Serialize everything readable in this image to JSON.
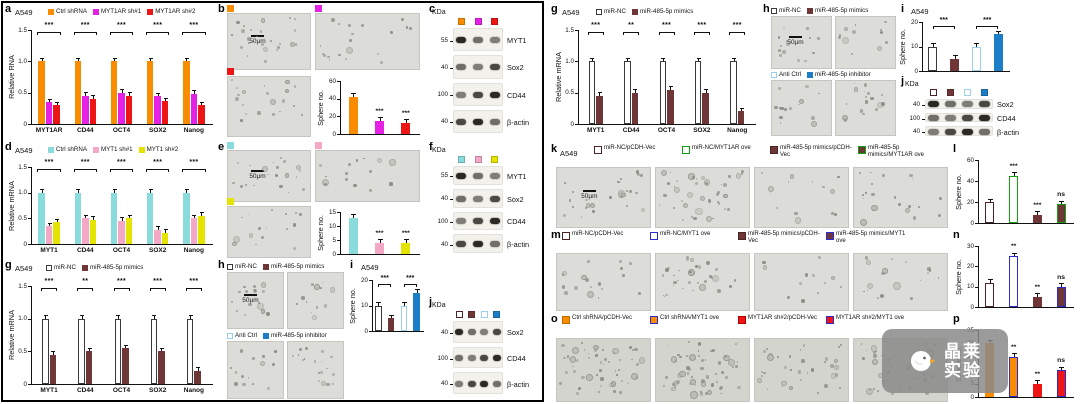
{
  "cell_line": "A549",
  "scale_bar": "50µm",
  "labels": {
    "a": "a",
    "b": "b",
    "c": "c",
    "d": "d",
    "e": "e",
    "f": "f",
    "g_left": "g",
    "h_left": "h",
    "i_left": "i",
    "j_left": "j",
    "g_right": "g",
    "h_right": "h",
    "i_right": "i",
    "j_right": "j",
    "k": "k",
    "l": "l",
    "m": "m",
    "n": "n",
    "o": "o",
    "p": "p"
  },
  "chart_data": {
    "a": {
      "type": "bar",
      "ylabel": "Relative RNA",
      "ymax": 1.5,
      "yticks": [
        {
          "v": 0,
          "t": "0"
        },
        {
          "v": 0.5,
          "t": "0.5"
        },
        {
          "v": 1,
          "t": "1.0"
        },
        {
          "v": 1.5,
          "t": "1.5"
        }
      ],
      "categories": [
        "MYT1AR",
        "CD44",
        "OCT4",
        "SOX2",
        "Nanog"
      ],
      "series": [
        {
          "name": "Ctrl shRNA",
          "color": "#F98C00",
          "values": [
            1.0,
            1.0,
            1.0,
            1.0,
            1.0
          ]
        },
        {
          "name": "MYT1AR sh#1",
          "color": "#E621E6",
          "values": [
            0.35,
            0.45,
            0.5,
            0.44,
            0.48
          ]
        },
        {
          "name": "MYT1AR sh#2",
          "color": "#ED1515",
          "values": [
            0.3,
            0.4,
            0.45,
            0.36,
            0.3
          ]
        }
      ],
      "sig": [
        "***",
        "***",
        "***",
        "***",
        "***"
      ]
    },
    "d": {
      "type": "bar",
      "ylabel": "Relative mRNA",
      "ymax": 1.5,
      "yticks": [
        {
          "v": 0,
          "t": "0"
        },
        {
          "v": 0.5,
          "t": "0.5"
        },
        {
          "v": 1,
          "t": "1.0"
        },
        {
          "v": 1.5,
          "t": "1.5"
        }
      ],
      "categories": [
        "MYT1",
        "CD44",
        "OCT4",
        "SOX2",
        "Nanog"
      ],
      "series": [
        {
          "name": "Ctrl shRNA",
          "color": "#8ADBDB",
          "values": [
            1.0,
            1.0,
            1.0,
            1.0,
            1.0
          ]
        },
        {
          "name": "MYT1 sh#1",
          "color": "#F5A8C6",
          "values": [
            0.35,
            0.5,
            0.45,
            0.28,
            0.5
          ]
        },
        {
          "name": "MYT1 sh#2",
          "color": "#E4E400",
          "values": [
            0.42,
            0.47,
            0.5,
            0.22,
            0.55
          ]
        }
      ],
      "sig": [
        "***",
        "***",
        "***",
        "***",
        "***"
      ]
    },
    "g": {
      "type": "bar",
      "ylabel": "Relative mRNA",
      "ymax": 1.5,
      "yticks": [
        {
          "v": 0,
          "t": "0"
        },
        {
          "v": 0.5,
          "t": "0.5"
        },
        {
          "v": 1,
          "t": "1.0"
        },
        {
          "v": 1.5,
          "t": "1.5"
        }
      ],
      "categories": [
        "MYT1",
        "CD44",
        "OCT4",
        "SOX2",
        "Nanog"
      ],
      "series": [
        {
          "name": "miR-NC",
          "fill": "#FFFFFF",
          "border": "#3A3A3A",
          "values": [
            1.0,
            1.0,
            1.0,
            1.0,
            1.0
          ]
        },
        {
          "name": "miR-485-5p mimics",
          "fill": "#6E3636",
          "border": "#6E3636",
          "values": [
            0.45,
            0.5,
            0.55,
            0.5,
            0.2
          ]
        }
      ],
      "sig": [
        "***",
        "**",
        "***",
        "***",
        "***"
      ]
    },
    "b_sphere": {
      "type": "bar",
      "ylabel": "Sphere no.",
      "ymax": 60,
      "ml": 24,
      "mt": 9,
      "mb": 4,
      "yticks": [
        {
          "v": 0,
          "t": "0"
        },
        {
          "v": 20,
          "t": "20"
        },
        {
          "v": 40,
          "t": "40"
        },
        {
          "v": 60,
          "t": "60"
        }
      ],
      "bars": [
        {
          "fill": "#F98C00",
          "value": 42
        },
        {
          "fill": "#E621E6",
          "value": 15,
          "sig": "***"
        },
        {
          "fill": "#ED1515",
          "value": 13,
          "sig": "***"
        }
      ]
    },
    "e_sphere": {
      "type": "bar",
      "ylabel": "Sphere no.",
      "ymax": 15,
      "ml": 24,
      "mt": 8,
      "mb": 4,
      "yticks": [
        {
          "v": 0,
          "t": "0"
        },
        {
          "v": 5,
          "t": "5"
        },
        {
          "v": 10,
          "t": "10"
        },
        {
          "v": 15,
          "t": "15"
        }
      ],
      "bars": [
        {
          "fill": "#8ADBDB",
          "value": 13
        },
        {
          "fill": "#F5A8C6",
          "value": 4,
          "sig": "***"
        },
        {
          "fill": "#E4E400",
          "value": 4,
          "sig": "***"
        }
      ]
    },
    "i_sphere": {
      "type": "bar",
      "ylabel": "Sphere no.",
      "ymax": 20,
      "ml": 20,
      "mt": 10,
      "mb": 3,
      "yticks": [
        {
          "v": 0,
          "t": "0"
        },
        {
          "v": 10,
          "t": "10"
        },
        {
          "v": 20,
          "t": "20"
        }
      ],
      "bars": [
        {
          "fill": "#FFFFFF",
          "border": "#3A3A3A",
          "value": 10
        },
        {
          "fill": "#6E3636",
          "value": 5
        },
        {
          "fill": "#FFFFFF",
          "border": "#9BCFEC",
          "value": 10
        },
        {
          "fill": "#1B7EC6",
          "value": 15
        }
      ],
      "pairs": [
        {
          "from": 0,
          "to": 1,
          "label": "***"
        },
        {
          "from": 2,
          "to": 3,
          "label": "***"
        }
      ]
    },
    "l_sphere": {
      "type": "bar",
      "ylabel": "Sphere no.",
      "ymax": 60,
      "ml": 22,
      "mt": 10,
      "mb": 3,
      "yticks": [
        {
          "v": 0,
          "t": "0"
        },
        {
          "v": 20,
          "t": "20"
        },
        {
          "v": 40,
          "t": "40"
        },
        {
          "v": 60,
          "t": "60"
        }
      ],
      "bars": [
        {
          "fill": "#FFFFFF",
          "border": "#4A2525",
          "value": 20
        },
        {
          "fill": "#FFFFFF",
          "border": "#12A012",
          "value": 45,
          "sig": "***"
        },
        {
          "fill": "#6E3636",
          "value": 8,
          "sig": "***"
        },
        {
          "fill": "#6E3636",
          "border": "#12A012",
          "value": 18,
          "sig": "ns"
        }
      ]
    },
    "n_sphere": {
      "type": "bar",
      "ylabel": "Sphere no.",
      "ymax": 30,
      "ml": 22,
      "mt": 10,
      "mb": 3,
      "yticks": [
        {
          "v": 0,
          "t": "0"
        },
        {
          "v": 10,
          "t": "10"
        },
        {
          "v": 20,
          "t": "20"
        },
        {
          "v": 30,
          "t": "30"
        }
      ],
      "bars": [
        {
          "fill": "#FFFFFF",
          "border": "#4A2525",
          "value": 12
        },
        {
          "fill": "#FFFFFF",
          "border": "#2B2BD0",
          "value": 25,
          "sig": "**"
        },
        {
          "fill": "#6E3636",
          "value": 5,
          "sig": "**"
        },
        {
          "fill": "#6E3636",
          "border": "#2B2BD0",
          "value": 10,
          "sig": "ns"
        }
      ]
    },
    "p_sphere": {
      "type": "bar",
      "ylabel": "Sphere no.",
      "ymax": 25,
      "ml": 22,
      "mt": 10,
      "mb": 3,
      "yticks": [
        {
          "v": 0,
          "t": "0"
        },
        {
          "v": 5,
          "t": "5"
        },
        {
          "v": 10,
          "t": "10"
        },
        {
          "v": 15,
          "t": "15"
        },
        {
          "v": 20,
          "t": "20"
        },
        {
          "v": 25,
          "t": "25"
        }
      ],
      "bars": [
        {
          "fill": "#F98C00",
          "value": 20
        },
        {
          "fill": "#F98C00",
          "border": "#2B2BD0",
          "value": 15,
          "sig": "**"
        },
        {
          "fill": "#ED1515",
          "value": 5,
          "sig": "**"
        },
        {
          "fill": "#ED1515",
          "border": "#2B2BD0",
          "value": 10,
          "sig": "ns"
        }
      ]
    }
  },
  "blots": {
    "kda_title": "KDa",
    "c": {
      "lane_colors": [
        {
          "fill": "#F98C00"
        },
        {
          "fill": "#E621E6"
        },
        {
          "fill": "#ED1515"
        }
      ],
      "rows": [
        {
          "kda": "55",
          "label": "MYT1"
        },
        {
          "kda": "40",
          "label": "Sox2"
        },
        {
          "kda": "100",
          "label": "CD44"
        },
        {
          "kda": "40",
          "label": "β-actin"
        }
      ]
    },
    "f": {
      "lane_colors": [
        {
          "fill": "#8ADBDB"
        },
        {
          "fill": "#F5A8C6"
        },
        {
          "fill": "#E4E400"
        }
      ],
      "rows": [
        {
          "kda": "55",
          "label": "MYT1"
        },
        {
          "kda": "40",
          "label": "Sox2"
        },
        {
          "kda": "100",
          "label": "CD44"
        },
        {
          "kda": "40",
          "label": "β-actin"
        }
      ]
    },
    "j": {
      "lane_colors": [
        {
          "fill": "#FFFFFF",
          "border": "#4A2525"
        },
        {
          "fill": "#6E3636"
        },
        {
          "fill": "#FFFFFF",
          "border": "#9BCFEC"
        },
        {
          "fill": "#1B7EC6"
        }
      ],
      "rows": [
        {
          "kda": "40",
          "label": "Sox2"
        },
        {
          "kda": "100",
          "label": "CD44"
        },
        {
          "kda": "40",
          "label": "β-actin"
        }
      ]
    }
  },
  "legends": {
    "mir": [
      {
        "label": "miR-NC",
        "fill": "#FFFFFF",
        "border": "#3A3A3A"
      },
      {
        "label": "miR-485-5p mimics",
        "fill": "#6E3636",
        "border": "#6E3636"
      }
    ],
    "anti": [
      {
        "label": "Anti Ctrl",
        "fill": "#FFFFFF",
        "border": "#9BCFEC"
      },
      {
        "label": "miR-485-5p inhibitor",
        "fill": "#1B7EC6",
        "border": "#1B7EC6"
      }
    ],
    "k": [
      {
        "label": "miR-NC/pCDH-Vec",
        "fill": "#FFFFFF",
        "border": "#4A2525"
      },
      {
        "label": "miR-NC/MYT1AR ove",
        "fill": "#FFFFFF",
        "border": "#12A012"
      },
      {
        "label": "miR-485-5p mimics/pCDH-Vec",
        "fill": "#6E3636",
        "border": "#4A2525"
      },
      {
        "label": "miR-485-5p mimics/MYT1AR ove",
        "fill": "#6E3636",
        "border": "#12A012"
      }
    ],
    "m": [
      {
        "label": "miR-NC/pCDH-Vec",
        "fill": "#FFFFFF",
        "border": "#4A2525"
      },
      {
        "label": "miR-NC/MYT1 ove",
        "fill": "#FFFFFF",
        "border": "#2B2BD0"
      },
      {
        "label": "miR-485-5p mimics/pCDH-Vec",
        "fill": "#6E3636",
        "border": "#4A2525"
      },
      {
        "label": "miR-485-5p mimics/MYT1 ove",
        "fill": "#6E3636",
        "border": "#2B2BD0"
      }
    ],
    "o": [
      {
        "label": "Ctrl shRNA/pCDH-Vec",
        "fill": "#F98C00",
        "border": "#C06A00"
      },
      {
        "label": "Ctrl shRNA/MYT1 ove",
        "fill": "#F98C00",
        "border": "#2B2BD0"
      },
      {
        "label": "MYT1AR sh#2/pCDH-Vec",
        "fill": "#ED1515",
        "border": "#B00000"
      },
      {
        "label": "MYT1AR sh#2/MYT1 ove",
        "fill": "#ED1515",
        "border": "#2B2BD0"
      }
    ]
  },
  "watermark": {
    "line1": "晶莱",
    "line2": "实验"
  }
}
